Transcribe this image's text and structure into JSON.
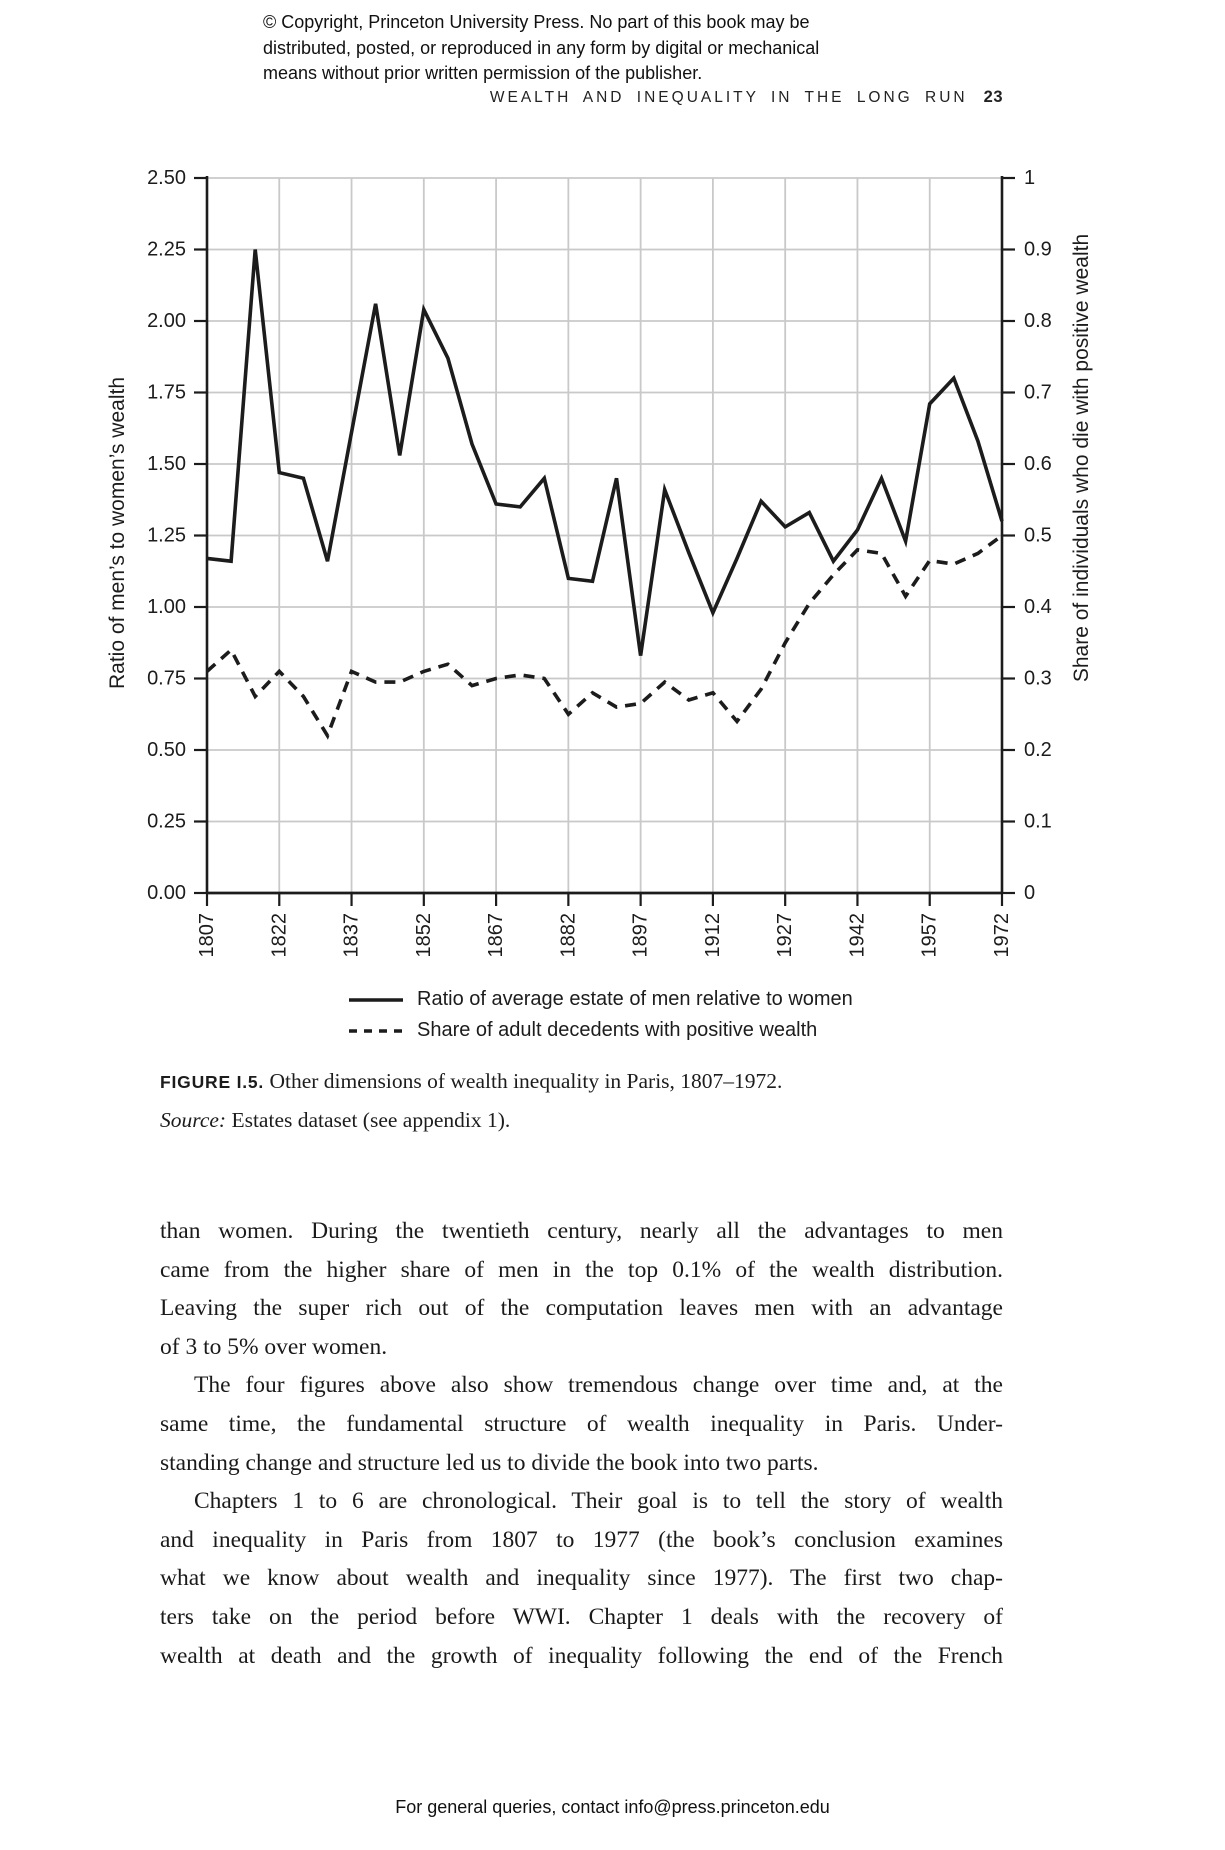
{
  "page": {
    "copyright_lines": [
      "© Copyright, Princeton University Press. No part of this book may be",
      "distributed, posted, or reproduced in any form by digital or mechanical",
      "means without prior written permission of the publisher."
    ],
    "running_head": "WEALTH AND INEQUALITY IN THE LONG RUN",
    "page_number": "23",
    "footer": "For general queries, contact info@press.princeton.edu"
  },
  "figure": {
    "caption_label": "FIGURE I.5.",
    "caption_text": "Other dimensions of wealth inequality in Paris, 1807–1972.",
    "source_label": "Source:",
    "source_text": "Estates dataset (see appendix 1)."
  },
  "chart_data": {
    "type": "line",
    "title": "",
    "x": [
      1807,
      1812,
      1817,
      1822,
      1827,
      1832,
      1837,
      1842,
      1847,
      1852,
      1857,
      1862,
      1867,
      1872,
      1877,
      1882,
      1887,
      1892,
      1897,
      1902,
      1907,
      1912,
      1917,
      1922,
      1927,
      1932,
      1937,
      1942,
      1947,
      1952,
      1957,
      1962,
      1967,
      1972
    ],
    "series": [
      {
        "name": "Ratio of average estate of men relative to women",
        "style": "solid",
        "axis": "left",
        "values": [
          1.17,
          1.16,
          2.25,
          1.47,
          1.45,
          1.16,
          1.61,
          2.06,
          1.53,
          2.04,
          1.87,
          1.57,
          1.36,
          1.35,
          1.45,
          1.1,
          1.09,
          1.45,
          0.83,
          1.41,
          1.19,
          0.98,
          1.17,
          1.37,
          1.28,
          1.33,
          1.16,
          1.27,
          1.45,
          1.23,
          1.71,
          1.8,
          1.58,
          1.3
        ]
      },
      {
        "name": "Share of adult decedents with positive wealth",
        "style": "dashed",
        "axis": "right",
        "values": [
          0.31,
          0.34,
          0.275,
          0.31,
          0.275,
          0.22,
          0.31,
          0.295,
          0.295,
          0.31,
          0.32,
          0.29,
          0.3,
          0.305,
          0.3,
          0.25,
          0.28,
          0.26,
          0.265,
          0.295,
          0.27,
          0.28,
          0.24,
          0.285,
          0.35,
          0.405,
          0.445,
          0.48,
          0.475,
          0.415,
          0.465,
          0.46,
          0.475,
          0.5
        ]
      }
    ],
    "left_axis": {
      "label": "Ratio of men’s to women’s wealth",
      "min": 0,
      "max": 2.5,
      "tick_step": 0.25,
      "ticks": [
        "0.00",
        "0.25",
        "0.50",
        "0.75",
        "1.00",
        "1.25",
        "1.50",
        "1.75",
        "2.00",
        "2.25",
        "2.50"
      ]
    },
    "right_axis": {
      "label": "Share of individuals who die with positive wealth",
      "min": 0,
      "max": 1,
      "tick_step": 0.1,
      "ticks": [
        "0",
        "0.1",
        "0.2",
        "0.3",
        "0.4",
        "0.5",
        "0.6",
        "0.7",
        "0.8",
        "0.9",
        "1"
      ]
    },
    "x_axis": {
      "tick_years": [
        1807,
        1822,
        1837,
        1852,
        1867,
        1882,
        1897,
        1912,
        1927,
        1942,
        1957,
        1972
      ]
    },
    "grid": true,
    "legend_position": "bottom",
    "colors": {
      "line": "#1c1c1c",
      "grid": "#c9c9c9",
      "text": "#1c1c1c"
    }
  },
  "body": {
    "paragraphs": [
      {
        "indent": false,
        "justify_last": false,
        "lines": [
          "than women. During the twentieth century, nearly all the advantages to men",
          "came from the higher share of men in the top 0.1% of the wealth distribution.",
          "Leaving the super rich out of the computation leaves men with an advantage",
          "of 3 to 5% over women."
        ]
      },
      {
        "indent": true,
        "justify_last": false,
        "lines": [
          "The four figures above also show tremendous change over time and, at the",
          "same time, the fundamental structure of wealth inequality in Paris. Under-",
          "standing change and structure led us to divide the book into two parts."
        ]
      },
      {
        "indent": true,
        "justify_last": true,
        "lines": [
          "Chapters 1 to 6 are chronological. Their goal is to tell the story of wealth",
          "and inequality in Paris from 1807 to 1977 (the book’s conclusion examines",
          "what we know about wealth and inequality since 1977). The first two chap-",
          "ters take on the period before WWI. Chapter 1 deals with the recovery of",
          "wealth at death and the growth of inequality following the end of the French"
        ]
      }
    ]
  }
}
